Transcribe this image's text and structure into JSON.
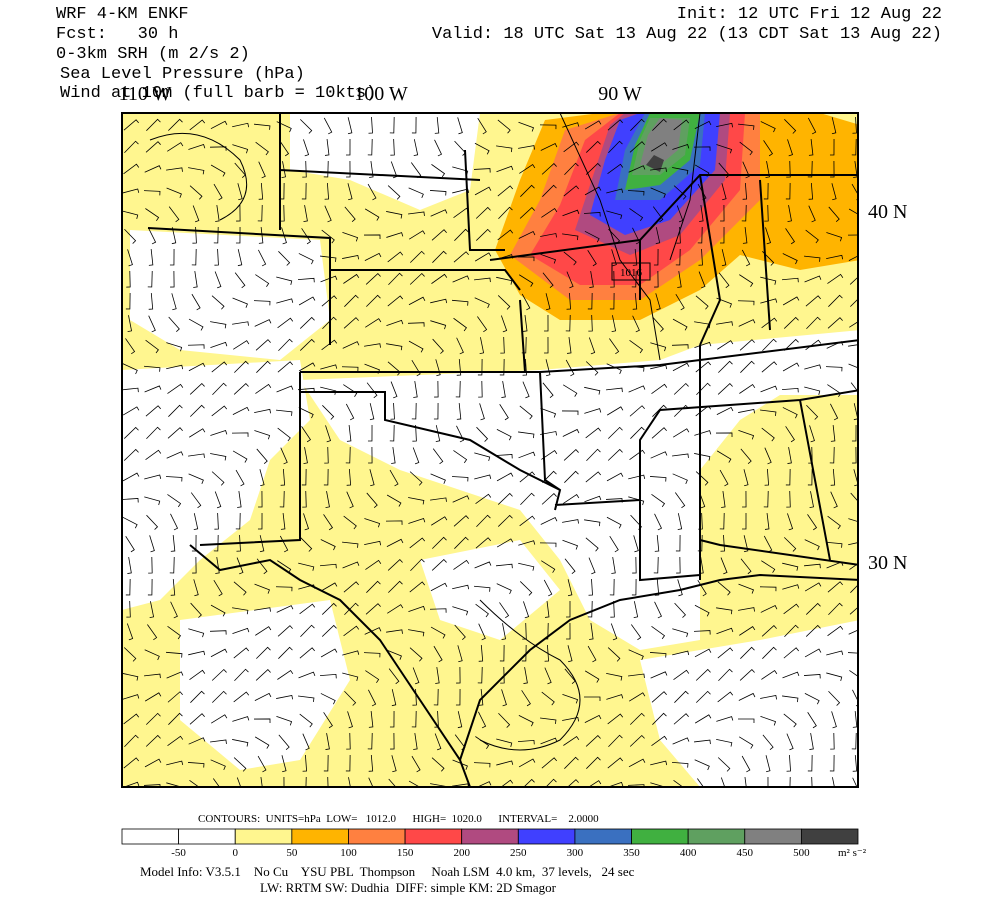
{
  "header": {
    "lines": [
      "WRF 4-KM ENKF",
      "Fcst:   30 h",
      "0-3km SRH (m 2/s 2)",
      "Sea Level Pressure (hPa)",
      "Wind at 10m (full barb = 10kts)"
    ],
    "init": "Init: 12 UTC Fri 12 Aug 22",
    "valid": "Valid: 18 UTC Sat 13 Aug 22 (13 CDT Sat 13 Aug 22)"
  },
  "map": {
    "lon_labels": [
      "110 W",
      "100 W",
      "90 W"
    ],
    "lat_labels": [
      "40 N",
      "30 N"
    ],
    "contour_label": "1016"
  },
  "contours": "CONTOURS:  UNITS=hPa  LOW=   1012.0      HIGH=  1020.0      INTERVAL=    2.0000",
  "colorbar": {
    "levels": [
      -50,
      0,
      50,
      100,
      150,
      200,
      250,
      300,
      350,
      400,
      450,
      500
    ],
    "units": "m² s⁻²",
    "colors": [
      "#ffffff",
      "#ffffff",
      "#fff68f",
      "#ffb400",
      "#ff8040",
      "#ff4848",
      "#b04a80",
      "#4040ff",
      "#3a70c0",
      "#40b040",
      "#5fa060",
      "#808080",
      "#404040"
    ]
  },
  "footer": [
    "Model Info: V3.5.1    No Cu    YSU PBL  Thompson     Noah LSM  4.0 km,  37 levels,   24 sec",
    "LW: RRTM SW: Dudhia  DIFF: simple KM: 2D Smagor"
  ]
}
